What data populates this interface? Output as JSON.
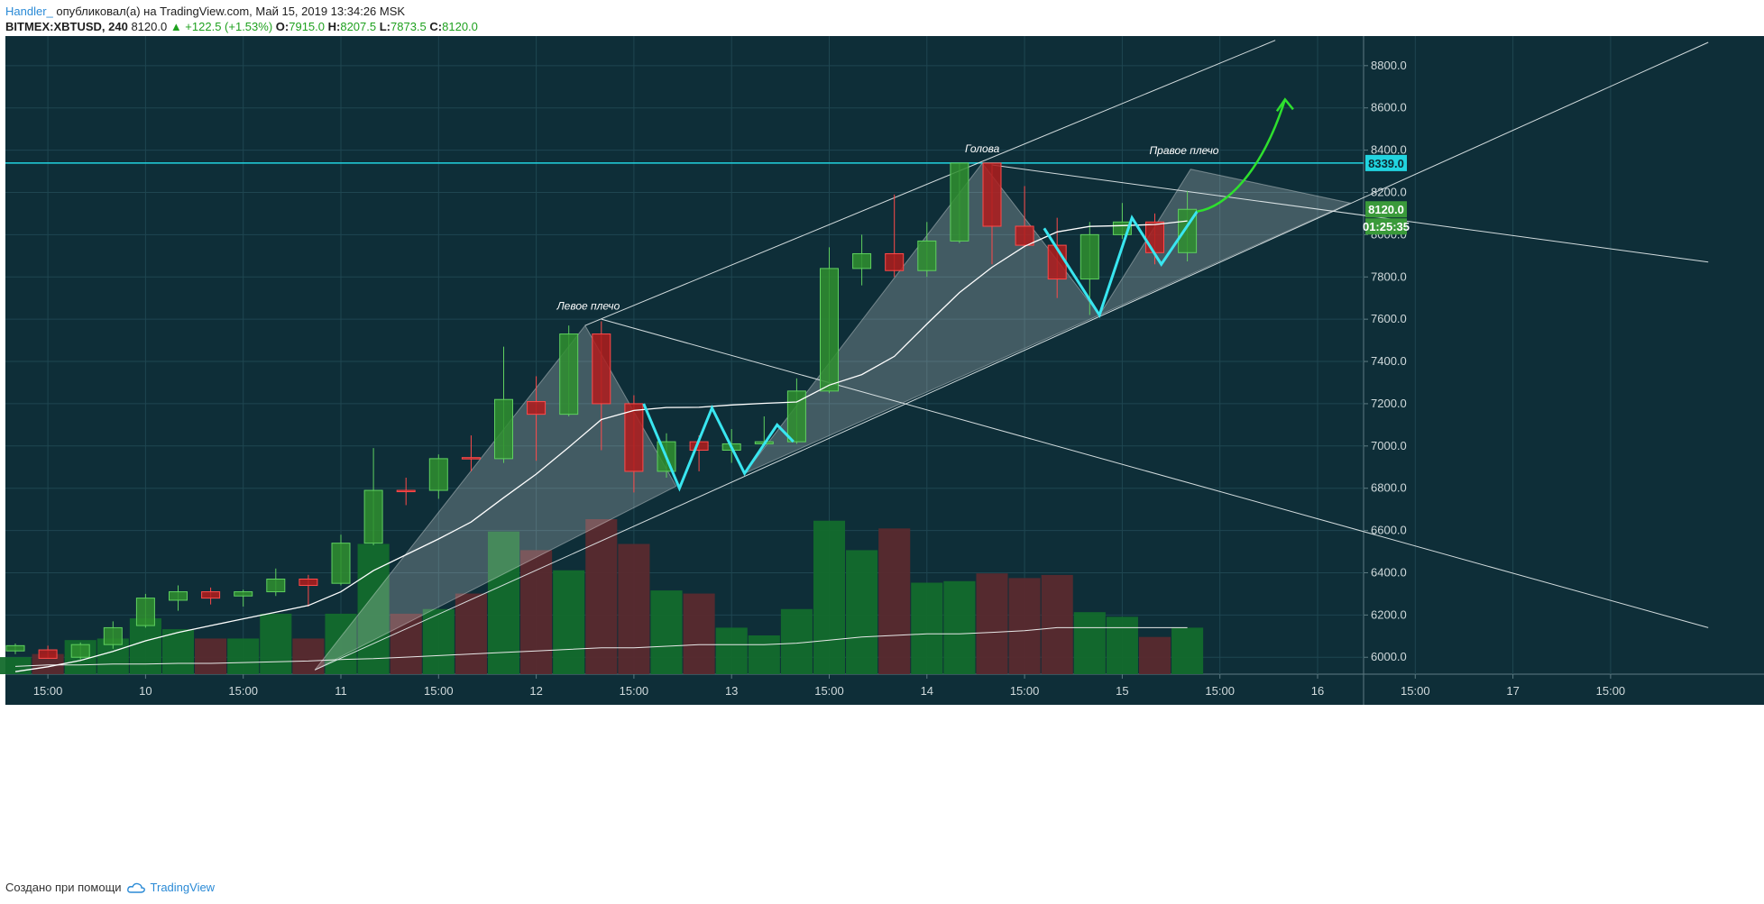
{
  "header": {
    "author": "Handler_",
    "published": "опубликовал(а) на TradingView.com, Май 15, 2019 13:34:26 MSK",
    "symbol": "BITMEX:XBTUSD, 240",
    "last": "8120.0",
    "change": "▲ +122.5 (+1.53%)",
    "o_label": "O:",
    "o_value": "7915.0",
    "h_label": "H:",
    "h_value": "8207.5",
    "l_label": "L:",
    "l_value": "7873.5",
    "c_label": "C:",
    "c_value": "8120.0"
  },
  "footer": {
    "created_with": "Создано при помощи",
    "brand": "TradingView"
  },
  "colors": {
    "background": "#0e2e38",
    "grid": "#1f4651",
    "up": "#2f8f2f",
    "down": "#b01c1c",
    "volume_up": "#136b2c",
    "volume_down": "#5a2a2e",
    "resistance": "#21d4e0",
    "pattern_line": "#39e6f0",
    "arrow": "#2ee02e"
  },
  "chart_data": {
    "type": "candlestick",
    "symbol": "BITMEX:XBTUSD",
    "timeframe": "240",
    "x_tick_labels": [
      "15:00",
      "10",
      "15:00",
      "11",
      "15:00",
      "12",
      "15:00",
      "13",
      "15:00",
      "14",
      "15:00",
      "15",
      "15:00",
      "16",
      "15:00",
      "17",
      "15:00"
    ],
    "y_tick_labels": [
      "8800.0",
      "8600.0",
      "8400.0",
      "8200.0",
      "8000.0",
      "7800.0",
      "7600.0",
      "7400.0",
      "7200.0",
      "7000.0",
      "6800.0",
      "6600.0",
      "6400.0",
      "6200.0",
      "6000.0"
    ],
    "ylim": [
      5920,
      8940
    ],
    "candles": [
      {
        "o": 6030,
        "h": 6065,
        "l": 6015,
        "c": 6055
      },
      {
        "o": 6035,
        "h": 6055,
        "l": 5995,
        "c": 5995
      },
      {
        "o": 6000,
        "h": 6070,
        "l": 5990,
        "c": 6060
      },
      {
        "o": 6060,
        "h": 6170,
        "l": 6040,
        "c": 6140
      },
      {
        "o": 6150,
        "h": 6300,
        "l": 6140,
        "c": 6280
      },
      {
        "o": 6270,
        "h": 6340,
        "l": 6220,
        "c": 6310
      },
      {
        "o": 6310,
        "h": 6330,
        "l": 6250,
        "c": 6280
      },
      {
        "o": 6290,
        "h": 6320,
        "l": 6240,
        "c": 6310
      },
      {
        "o": 6310,
        "h": 6420,
        "l": 6290,
        "c": 6370
      },
      {
        "o": 6370,
        "h": 6390,
        "l": 6240,
        "c": 6340
      },
      {
        "o": 6350,
        "h": 6580,
        "l": 6340,
        "c": 6540
      },
      {
        "o": 6540,
        "h": 6990,
        "l": 6530,
        "c": 6790
      },
      {
        "o": 6790,
        "h": 6850,
        "l": 6720,
        "c": 6785
      },
      {
        "o": 6790,
        "h": 6960,
        "l": 6750,
        "c": 6940
      },
      {
        "o": 6945,
        "h": 7050,
        "l": 6880,
        "c": 6940
      },
      {
        "o": 6940,
        "h": 7470,
        "l": 6920,
        "c": 7220
      },
      {
        "o": 7210,
        "h": 7330,
        "l": 6930,
        "c": 7150
      },
      {
        "o": 7150,
        "h": 7570,
        "l": 7140,
        "c": 7530
      },
      {
        "o": 7530,
        "h": 7590,
        "l": 6980,
        "c": 7200
      },
      {
        "o": 7200,
        "h": 7240,
        "l": 6780,
        "c": 6880
      },
      {
        "o": 6880,
        "h": 7060,
        "l": 6850,
        "c": 7020
      },
      {
        "o": 7020,
        "h": 7050,
        "l": 6880,
        "c": 6980
      },
      {
        "o": 6980,
        "h": 7080,
        "l": 6920,
        "c": 7010
      },
      {
        "o": 7010,
        "h": 7140,
        "l": 7000,
        "c": 7020
      },
      {
        "o": 7020,
        "h": 7320,
        "l": 7010,
        "c": 7260
      },
      {
        "o": 7260,
        "h": 7940,
        "l": 7250,
        "c": 7840
      },
      {
        "o": 7840,
        "h": 8000,
        "l": 7760,
        "c": 7910
      },
      {
        "o": 7910,
        "h": 8190,
        "l": 7800,
        "c": 7830
      },
      {
        "o": 7830,
        "h": 8060,
        "l": 7800,
        "c": 7970
      },
      {
        "o": 7970,
        "h": 8340,
        "l": 7960,
        "c": 8339
      },
      {
        "o": 8339,
        "h": 8339,
        "l": 7860,
        "c": 8040
      },
      {
        "o": 8040,
        "h": 8230,
        "l": 7940,
        "c": 7950
      },
      {
        "o": 7950,
        "h": 8080,
        "l": 7700,
        "c": 7790
      },
      {
        "o": 7790,
        "h": 8060,
        "l": 7620,
        "c": 8000
      },
      {
        "o": 8000,
        "h": 8150,
        "l": 7980,
        "c": 8060
      },
      {
        "o": 8060,
        "h": 8100,
        "l": 7860,
        "c": 7915
      },
      {
        "o": 7915,
        "h": 8207.5,
        "l": 7873.5,
        "c": 8120
      }
    ],
    "volume": [
      0.11,
      0.13,
      0.22,
      0.23,
      0.36,
      0.29,
      0.23,
      0.23,
      0.39,
      0.23,
      0.39,
      0.84,
      0.39,
      0.42,
      0.52,
      0.92,
      0.8,
      0.67,
      1.0,
      0.84,
      0.54,
      0.52,
      0.3,
      0.25,
      0.42,
      0.99,
      0.8,
      0.94,
      0.59,
      0.6,
      0.65,
      0.62,
      0.64,
      0.4,
      0.37,
      0.24,
      0.3
    ],
    "moving_average": [
      5932,
      5955,
      5985,
      6028,
      6078,
      6117,
      6150,
      6182,
      6213,
      6245,
      6310,
      6410,
      6485,
      6560,
      6640,
      6755,
      6867,
      6994,
      7125,
      7168,
      7182,
      7183,
      7194,
      7202,
      7208,
      7288,
      7338,
      7424,
      7577,
      7726,
      7846,
      7945,
      8013,
      8039,
      8043,
      8048,
      8065
    ],
    "volume_average": [
      0.05,
      0.06,
      0.06,
      0.065,
      0.065,
      0.07,
      0.07,
      0.075,
      0.08,
      0.085,
      0.095,
      0.1,
      0.11,
      0.12,
      0.13,
      0.14,
      0.15,
      0.16,
      0.17,
      0.17,
      0.18,
      0.19,
      0.19,
      0.19,
      0.2,
      0.22,
      0.24,
      0.25,
      0.26,
      0.26,
      0.27,
      0.28,
      0.3,
      0.3,
      0.3,
      0.3,
      0.3
    ],
    "resistance_level": 8339.0,
    "price_labels": {
      "resistance": "8339.0",
      "last": "8120.0",
      "timer": "01:25:35"
    },
    "annotations": [
      {
        "text": "Левое плечо",
        "bar": 17.6,
        "price": 7620
      },
      {
        "text": "Голова",
        "bar": 29.7,
        "price": 8365
      },
      {
        "text": "Правое плечо",
        "bar": 35.9,
        "price": 8355
      }
    ],
    "pattern_zigzag_1": [
      [
        19.3,
        7200
      ],
      [
        20.4,
        6800
      ],
      [
        21.4,
        7180
      ],
      [
        22.4,
        6870
      ],
      [
        23.4,
        7100
      ],
      [
        23.9,
        7020
      ]
    ],
    "pattern_zigzag_2": [
      [
        31.6,
        8030
      ],
      [
        33.3,
        7620
      ],
      [
        34.3,
        8080
      ],
      [
        35.2,
        7860
      ],
      [
        36.3,
        8110
      ]
    ],
    "shoulder_triangles": [
      [
        [
          9.2,
          5940
        ],
        [
          17.5,
          7570
        ],
        [
          20.3,
          6810
        ]
      ],
      [
        [
          22.4,
          6870
        ],
        [
          29.7,
          8339
        ],
        [
          33.3,
          7620
        ]
      ],
      [
        [
          33.3,
          7620
        ],
        [
          36.1,
          8310
        ],
        [
          41.0,
          8150
        ]
      ]
    ],
    "trend_lines": [
      [
        [
          17.5,
          7570
        ],
        [
          38.7,
          8920
        ]
      ],
      [
        [
          9.2,
          5940
        ],
        [
          52.0,
          8910
        ]
      ],
      [
        [
          18.0,
          7600
        ],
        [
          52.0,
          6140
        ]
      ],
      [
        [
          30.0,
          8330
        ],
        [
          52.0,
          7870
        ]
      ]
    ],
    "arrow": [
      [
        36.3,
        8110
      ],
      [
        37.2,
        8130
      ],
      [
        38.3,
        8300
      ],
      [
        39.0,
        8640
      ]
    ]
  }
}
